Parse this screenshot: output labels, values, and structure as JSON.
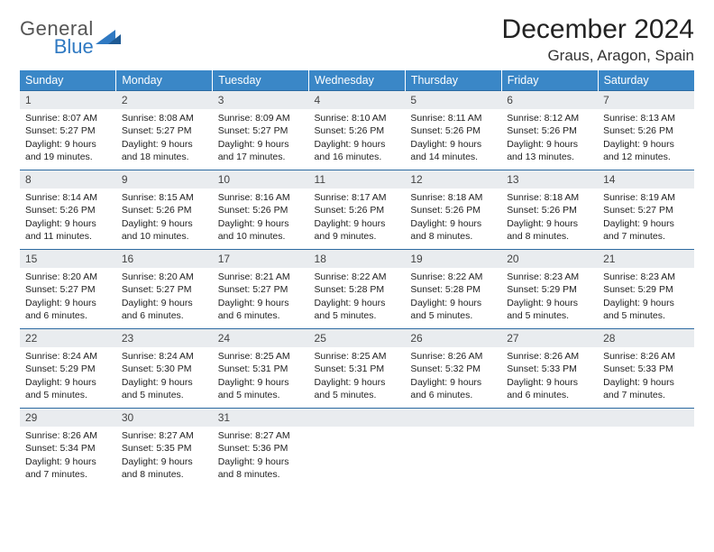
{
  "logo": {
    "general": "General",
    "blue": "Blue"
  },
  "title": "December 2024",
  "location": "Graus, Aragon, Spain",
  "colors": {
    "header_bg": "#3a87c7",
    "header_text": "#ffffff",
    "row_border": "#2c6aa1",
    "daynum_bg": "#e9ecef",
    "logo_blue": "#2f79c2"
  },
  "typography": {
    "title_fontsize": 30,
    "location_fontsize": 17,
    "dayheader_fontsize": 12.5,
    "cell_fontsize": 10.5,
    "logo_fontsize": 22
  },
  "day_headers": [
    "Sunday",
    "Monday",
    "Tuesday",
    "Wednesday",
    "Thursday",
    "Friday",
    "Saturday"
  ],
  "weeks": [
    [
      {
        "n": "1",
        "sunrise": "Sunrise: 8:07 AM",
        "sunset": "Sunset: 5:27 PM",
        "daylight": "Daylight: 9 hours and 19 minutes."
      },
      {
        "n": "2",
        "sunrise": "Sunrise: 8:08 AM",
        "sunset": "Sunset: 5:27 PM",
        "daylight": "Daylight: 9 hours and 18 minutes."
      },
      {
        "n": "3",
        "sunrise": "Sunrise: 8:09 AM",
        "sunset": "Sunset: 5:27 PM",
        "daylight": "Daylight: 9 hours and 17 minutes."
      },
      {
        "n": "4",
        "sunrise": "Sunrise: 8:10 AM",
        "sunset": "Sunset: 5:26 PM",
        "daylight": "Daylight: 9 hours and 16 minutes."
      },
      {
        "n": "5",
        "sunrise": "Sunrise: 8:11 AM",
        "sunset": "Sunset: 5:26 PM",
        "daylight": "Daylight: 9 hours and 14 minutes."
      },
      {
        "n": "6",
        "sunrise": "Sunrise: 8:12 AM",
        "sunset": "Sunset: 5:26 PM",
        "daylight": "Daylight: 9 hours and 13 minutes."
      },
      {
        "n": "7",
        "sunrise": "Sunrise: 8:13 AM",
        "sunset": "Sunset: 5:26 PM",
        "daylight": "Daylight: 9 hours and 12 minutes."
      }
    ],
    [
      {
        "n": "8",
        "sunrise": "Sunrise: 8:14 AM",
        "sunset": "Sunset: 5:26 PM",
        "daylight": "Daylight: 9 hours and 11 minutes."
      },
      {
        "n": "9",
        "sunrise": "Sunrise: 8:15 AM",
        "sunset": "Sunset: 5:26 PM",
        "daylight": "Daylight: 9 hours and 10 minutes."
      },
      {
        "n": "10",
        "sunrise": "Sunrise: 8:16 AM",
        "sunset": "Sunset: 5:26 PM",
        "daylight": "Daylight: 9 hours and 10 minutes."
      },
      {
        "n": "11",
        "sunrise": "Sunrise: 8:17 AM",
        "sunset": "Sunset: 5:26 PM",
        "daylight": "Daylight: 9 hours and 9 minutes."
      },
      {
        "n": "12",
        "sunrise": "Sunrise: 8:18 AM",
        "sunset": "Sunset: 5:26 PM",
        "daylight": "Daylight: 9 hours and 8 minutes."
      },
      {
        "n": "13",
        "sunrise": "Sunrise: 8:18 AM",
        "sunset": "Sunset: 5:26 PM",
        "daylight": "Daylight: 9 hours and 8 minutes."
      },
      {
        "n": "14",
        "sunrise": "Sunrise: 8:19 AM",
        "sunset": "Sunset: 5:27 PM",
        "daylight": "Daylight: 9 hours and 7 minutes."
      }
    ],
    [
      {
        "n": "15",
        "sunrise": "Sunrise: 8:20 AM",
        "sunset": "Sunset: 5:27 PM",
        "daylight": "Daylight: 9 hours and 6 minutes."
      },
      {
        "n": "16",
        "sunrise": "Sunrise: 8:20 AM",
        "sunset": "Sunset: 5:27 PM",
        "daylight": "Daylight: 9 hours and 6 minutes."
      },
      {
        "n": "17",
        "sunrise": "Sunrise: 8:21 AM",
        "sunset": "Sunset: 5:27 PM",
        "daylight": "Daylight: 9 hours and 6 minutes."
      },
      {
        "n": "18",
        "sunrise": "Sunrise: 8:22 AM",
        "sunset": "Sunset: 5:28 PM",
        "daylight": "Daylight: 9 hours and 5 minutes."
      },
      {
        "n": "19",
        "sunrise": "Sunrise: 8:22 AM",
        "sunset": "Sunset: 5:28 PM",
        "daylight": "Daylight: 9 hours and 5 minutes."
      },
      {
        "n": "20",
        "sunrise": "Sunrise: 8:23 AM",
        "sunset": "Sunset: 5:29 PM",
        "daylight": "Daylight: 9 hours and 5 minutes."
      },
      {
        "n": "21",
        "sunrise": "Sunrise: 8:23 AM",
        "sunset": "Sunset: 5:29 PM",
        "daylight": "Daylight: 9 hours and 5 minutes."
      }
    ],
    [
      {
        "n": "22",
        "sunrise": "Sunrise: 8:24 AM",
        "sunset": "Sunset: 5:29 PM",
        "daylight": "Daylight: 9 hours and 5 minutes."
      },
      {
        "n": "23",
        "sunrise": "Sunrise: 8:24 AM",
        "sunset": "Sunset: 5:30 PM",
        "daylight": "Daylight: 9 hours and 5 minutes."
      },
      {
        "n": "24",
        "sunrise": "Sunrise: 8:25 AM",
        "sunset": "Sunset: 5:31 PM",
        "daylight": "Daylight: 9 hours and 5 minutes."
      },
      {
        "n": "25",
        "sunrise": "Sunrise: 8:25 AM",
        "sunset": "Sunset: 5:31 PM",
        "daylight": "Daylight: 9 hours and 5 minutes."
      },
      {
        "n": "26",
        "sunrise": "Sunrise: 8:26 AM",
        "sunset": "Sunset: 5:32 PM",
        "daylight": "Daylight: 9 hours and 6 minutes."
      },
      {
        "n": "27",
        "sunrise": "Sunrise: 8:26 AM",
        "sunset": "Sunset: 5:33 PM",
        "daylight": "Daylight: 9 hours and 6 minutes."
      },
      {
        "n": "28",
        "sunrise": "Sunrise: 8:26 AM",
        "sunset": "Sunset: 5:33 PM",
        "daylight": "Daylight: 9 hours and 7 minutes."
      }
    ],
    [
      {
        "n": "29",
        "sunrise": "Sunrise: 8:26 AM",
        "sunset": "Sunset: 5:34 PM",
        "daylight": "Daylight: 9 hours and 7 minutes."
      },
      {
        "n": "30",
        "sunrise": "Sunrise: 8:27 AM",
        "sunset": "Sunset: 5:35 PM",
        "daylight": "Daylight: 9 hours and 8 minutes."
      },
      {
        "n": "31",
        "sunrise": "Sunrise: 8:27 AM",
        "sunset": "Sunset: 5:36 PM",
        "daylight": "Daylight: 9 hours and 8 minutes."
      },
      {
        "empty": true
      },
      {
        "empty": true
      },
      {
        "empty": true
      },
      {
        "empty": true
      }
    ]
  ]
}
